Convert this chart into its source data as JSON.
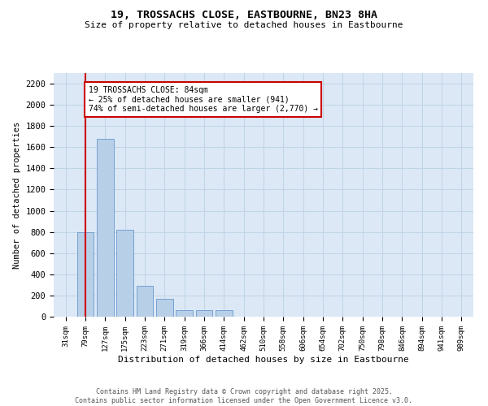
{
  "title1": "19, TROSSACHS CLOSE, EASTBOURNE, BN23 8HA",
  "title2": "Size of property relative to detached houses in Eastbourne",
  "xlabel": "Distribution of detached houses by size in Eastbourne",
  "ylabel": "Number of detached properties",
  "categories": [
    "31sqm",
    "79sqm",
    "127sqm",
    "175sqm",
    "223sqm",
    "271sqm",
    "319sqm",
    "366sqm",
    "414sqm",
    "462sqm",
    "510sqm",
    "558sqm",
    "606sqm",
    "654sqm",
    "702sqm",
    "750sqm",
    "798sqm",
    "846sqm",
    "894sqm",
    "941sqm",
    "989sqm"
  ],
  "values": [
    3,
    800,
    1680,
    820,
    290,
    170,
    62,
    62,
    62,
    3,
    3,
    3,
    3,
    3,
    3,
    3,
    3,
    3,
    3,
    3,
    3
  ],
  "bar_color": "#b8cfe8",
  "bar_edge_color": "#6699cc",
  "annotation_title": "19 TROSSACHS CLOSE: 84sqm",
  "annotation_line1": "← 25% of detached houses are smaller (941)",
  "annotation_line2": "74% of semi-detached houses are larger (2,770) →",
  "annotation_box_color": "#cc0000",
  "ylim": [
    0,
    2300
  ],
  "yticks": [
    0,
    200,
    400,
    600,
    800,
    1000,
    1200,
    1400,
    1600,
    1800,
    2000,
    2200
  ],
  "grid_color": "#c0d4e8",
  "bg_color": "#dce8f5",
  "footer1": "Contains HM Land Registry data © Crown copyright and database right 2025.",
  "footer2": "Contains public sector information licensed under the Open Government Licence v3.0."
}
